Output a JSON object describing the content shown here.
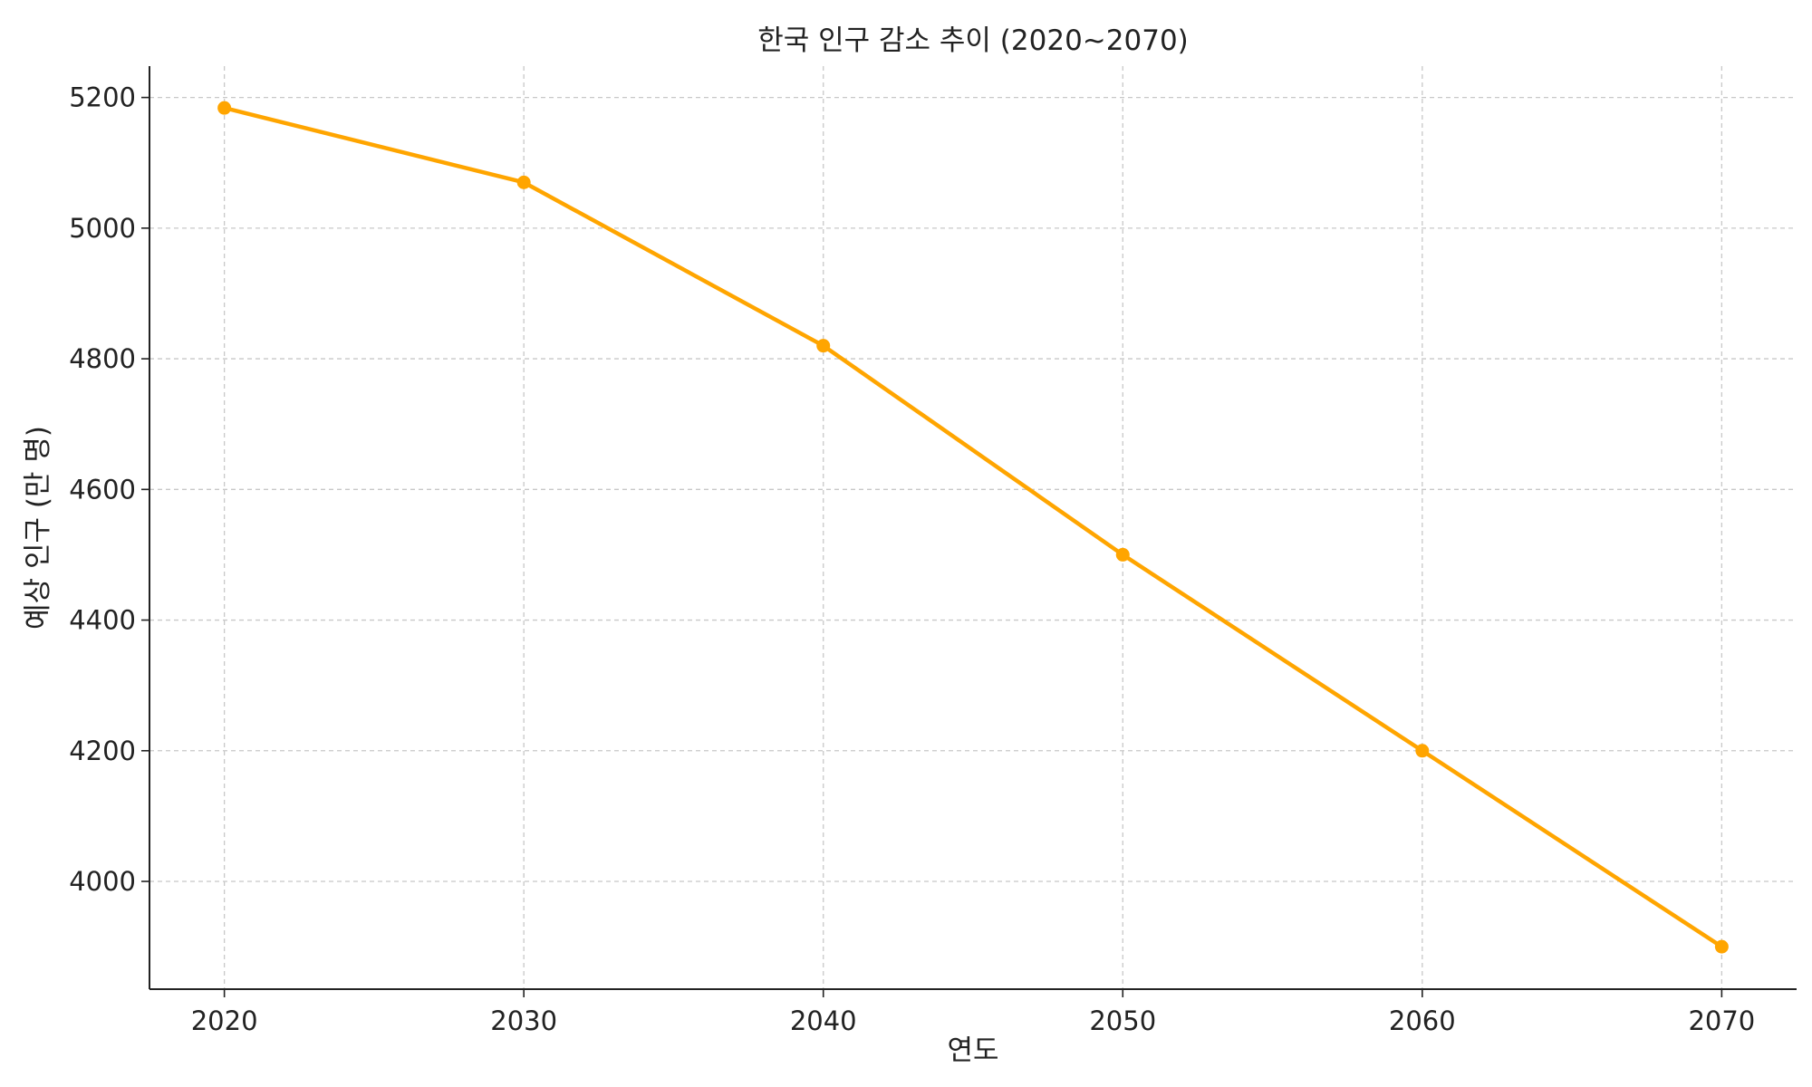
{
  "chart_data": {
    "type": "line",
    "title": "한국 인구 감소 추이 (2020~2070)",
    "xlabel": "연도",
    "ylabel": "예상 인구 (만 명)",
    "x": [
      2020,
      2030,
      2040,
      2050,
      2060,
      2070
    ],
    "x_ticks": [
      "2020",
      "2030",
      "2040",
      "2050",
      "2060",
      "2070"
    ],
    "xlim": [
      2017.5,
      2072.5
    ],
    "ylim": [
      3835,
      5248
    ],
    "y_ticks": [
      "4000",
      "4200",
      "4400",
      "4600",
      "4800",
      "5000",
      "5200"
    ],
    "grid": true,
    "series": [
      {
        "values": [
          5184,
          5070,
          4820,
          4500,
          4200,
          3900
        ],
        "color": "#FFA500",
        "marker": "circle"
      }
    ]
  }
}
